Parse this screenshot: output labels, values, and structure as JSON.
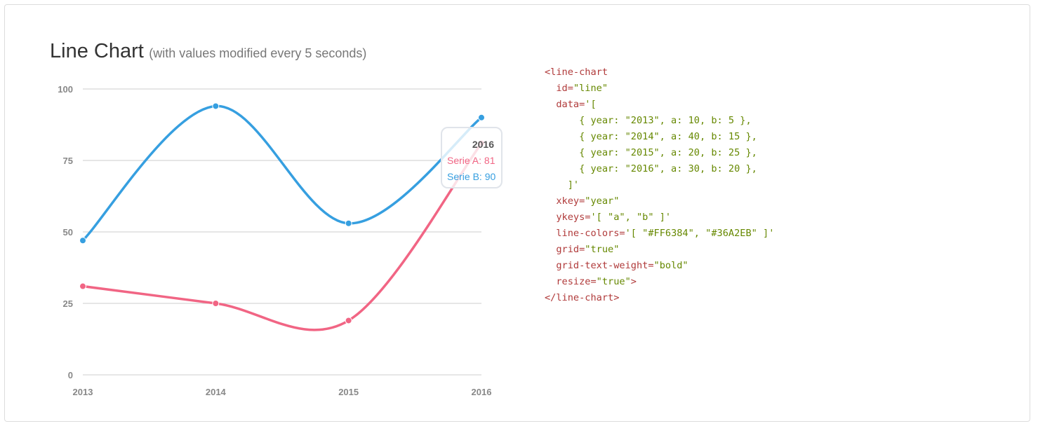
{
  "title": "Line Chart",
  "subtitle": "(with values modified every 5 seconds)",
  "colors": {
    "serie_a": "#f16584",
    "serie_b": "#369fe0",
    "grid": "#cccccc",
    "axis_text": "#888888"
  },
  "chart_data": {
    "type": "line",
    "categories": [
      "2013",
      "2014",
      "2015",
      "2016"
    ],
    "series": [
      {
        "name": "Serie A",
        "values": [
          31,
          25,
          19,
          81
        ]
      },
      {
        "name": "Serie B",
        "values": [
          47,
          94,
          53,
          90
        ]
      }
    ],
    "y_ticks": [
      "0",
      "25",
      "50",
      "75",
      "100"
    ],
    "ylim": [
      0,
      100
    ],
    "grid": true
  },
  "tooltip": {
    "title": "2016",
    "serie_a": "Serie A: 81",
    "serie_b": "Serie B: 90"
  },
  "code": {
    "line1": "<line-chart",
    "id_attr": "id=",
    "id_val": "\"line\"",
    "data_attr": "data=",
    "data_open": "'[",
    "data_row1": "{ year: \"2013\", a: 10, b: 5 },",
    "data_row2": "{ year: \"2014\", a: 40, b: 15 },",
    "data_row3": "{ year: \"2015\", a: 20, b: 25 },",
    "data_row4": "{ year: \"2016\", a: 30, b: 20 },",
    "data_close": "]'",
    "xkey_attr": "xkey=",
    "xkey_val": "\"year\"",
    "ykeys_attr": "ykeys=",
    "ykeys_val": "'[ \"a\", \"b\" ]'",
    "colors_attr": "line-colors=",
    "colors_val": "'[ \"#FF6384\", \"#36A2EB\" ]'",
    "grid_attr": "grid=",
    "grid_val": "\"true\"",
    "gtw_attr": "grid-text-weight=",
    "gtw_val": "\"bold\"",
    "resize_attr": "resize=",
    "resize_val": "\"true\"",
    "resize_close": ">",
    "close_tag": "</line-chart>"
  }
}
